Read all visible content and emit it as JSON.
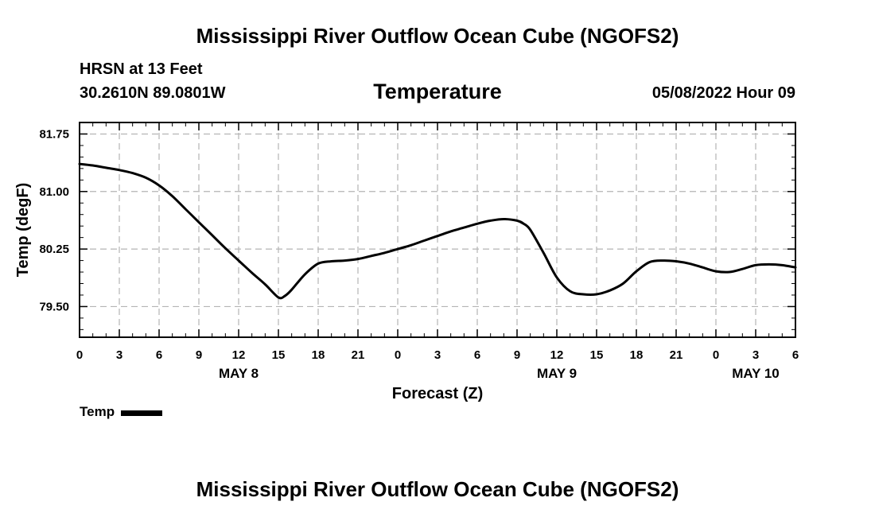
{
  "header": {
    "main_title": "Mississippi River Outflow Ocean Cube (NGOFS2)",
    "station": "HRSN at 13 Feet",
    "coords": "30.2610N  89.0801W",
    "chart_title": "Temperature",
    "datetime": "05/08/2022 Hour 09"
  },
  "footer": {
    "title": "Mississippi River Outflow Ocean Cube (NGOFS2)"
  },
  "legend": {
    "label": "Temp"
  },
  "colors": {
    "line": "#000000",
    "grid": "#b4b4b4",
    "background": "#ffffff"
  },
  "chart_data": {
    "type": "line",
    "title": "Temperature",
    "xlabel": "Forecast (Z)",
    "ylabel": "Temp (degF)",
    "xlim": [
      0,
      54
    ],
    "ylim": [
      79.1,
      81.9
    ],
    "grid": true,
    "x_ticks": [
      0,
      3,
      6,
      9,
      12,
      15,
      18,
      21,
      24,
      27,
      30,
      33,
      36,
      39,
      42,
      45,
      48,
      51,
      54
    ],
    "x_tick_labels": [
      "0",
      "3",
      "6",
      "9",
      "12",
      "15",
      "18",
      "21",
      "0",
      "3",
      "6",
      "9",
      "12",
      "15",
      "18",
      "21",
      "0",
      "3",
      "6"
    ],
    "y_ticks": [
      79.5,
      80.25,
      81.0,
      81.75
    ],
    "y_tick_labels": [
      "79.50",
      "80.25",
      "81.00",
      "81.75"
    ],
    "day_labels": [
      {
        "x": 12,
        "label": "MAY 8"
      },
      {
        "x": 36,
        "label": "MAY 9"
      },
      {
        "x": 51,
        "label": "MAY 10"
      }
    ],
    "legend_position": "bottom-left",
    "series": [
      {
        "name": "Temp",
        "x": [
          0,
          1,
          2,
          3,
          4,
          5,
          6,
          7,
          8,
          9,
          10,
          11,
          12,
          13,
          14,
          15,
          15.5,
          16,
          17,
          18,
          19,
          20,
          21,
          22,
          23,
          24,
          25,
          26,
          27,
          28,
          29,
          30,
          31,
          32,
          33,
          33.5,
          34,
          35,
          36,
          37,
          38,
          39,
          40,
          41,
          42,
          43,
          44,
          45,
          46,
          47,
          48,
          49,
          50,
          51,
          52,
          53,
          54
        ],
        "values": [
          81.36,
          81.34,
          81.31,
          81.28,
          81.24,
          81.18,
          81.08,
          80.94,
          80.77,
          80.6,
          80.43,
          80.26,
          80.1,
          79.94,
          79.79,
          79.62,
          79.64,
          79.72,
          79.92,
          80.06,
          80.09,
          80.1,
          80.12,
          80.16,
          80.2,
          80.25,
          80.3,
          80.36,
          80.42,
          80.48,
          80.53,
          80.58,
          80.62,
          80.64,
          80.62,
          80.58,
          80.5,
          80.2,
          79.88,
          79.7,
          79.66,
          79.66,
          79.71,
          79.8,
          79.96,
          80.08,
          80.1,
          80.09,
          80.06,
          80.01,
          79.96,
          79.95,
          79.99,
          80.04,
          80.05,
          80.04,
          80.01
        ]
      }
    ]
  }
}
